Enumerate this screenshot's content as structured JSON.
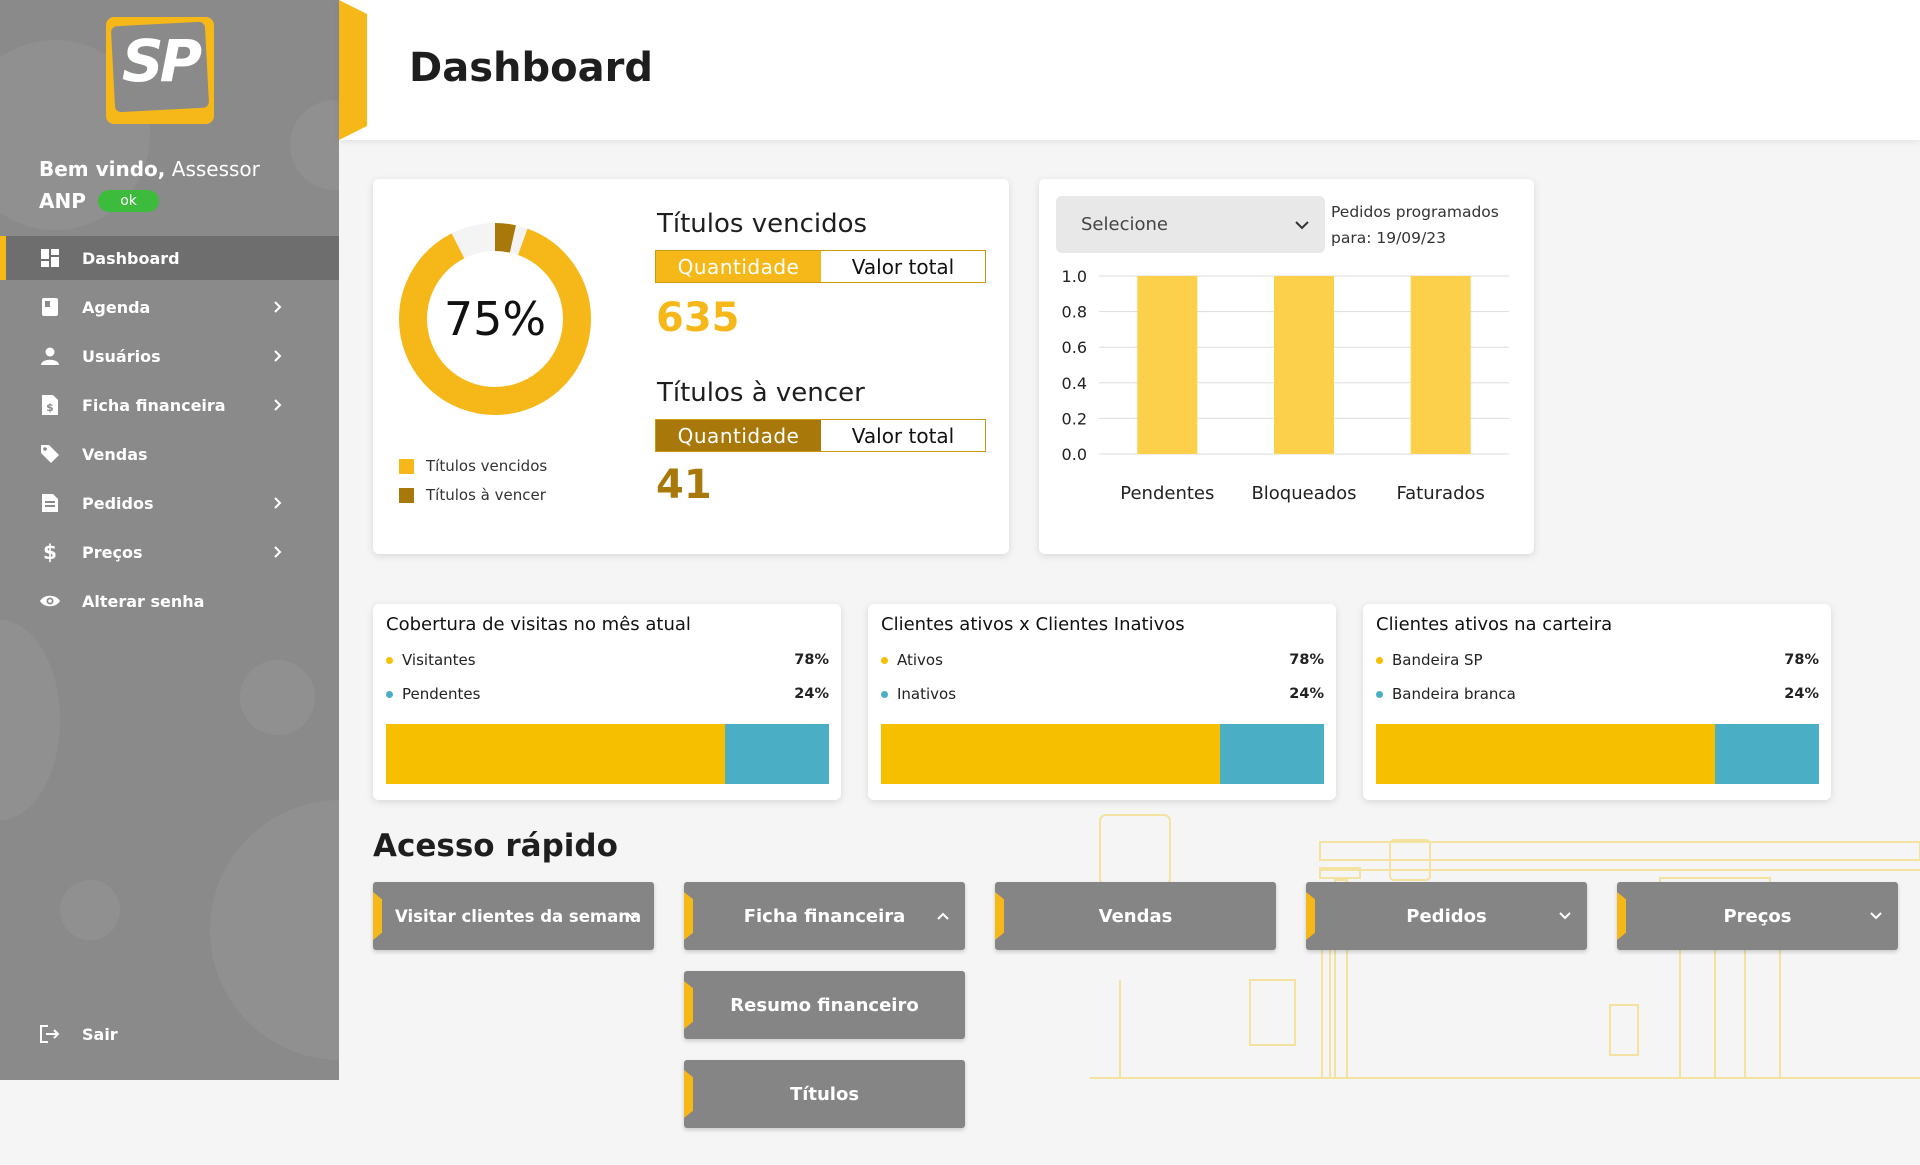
{
  "brand": {
    "logo_text": "SP",
    "accent": "#f6b818",
    "dark_accent": "#a9780a",
    "teal": "#4aafc5"
  },
  "sidebar": {
    "welcome_bold": "Bem vindo,",
    "welcome_role": "Assessor",
    "user_name": "ANP",
    "status_badge": "ok",
    "items": [
      {
        "label": "Dashboard",
        "icon": "dashboard-icon",
        "active": true,
        "has_chevron": false
      },
      {
        "label": "Agenda",
        "icon": "book-icon",
        "active": false,
        "has_chevron": true
      },
      {
        "label": "Usuários",
        "icon": "person-icon",
        "active": false,
        "has_chevron": true
      },
      {
        "label": "Ficha financeira",
        "icon": "document-dollar-icon",
        "active": false,
        "has_chevron": true
      },
      {
        "label": "Vendas",
        "icon": "tag-icon",
        "active": false,
        "has_chevron": false
      },
      {
        "label": "Pedidos",
        "icon": "list-document-icon",
        "active": false,
        "has_chevron": true
      },
      {
        "label": "Preços",
        "icon": "dollar-icon",
        "active": false,
        "has_chevron": true
      },
      {
        "label": "Alterar senha",
        "icon": "eye-icon",
        "active": false,
        "has_chevron": false
      }
    ],
    "logout_label": "Sair"
  },
  "header": {
    "title": "Dashboard"
  },
  "titles_card": {
    "donut_percent": "75%",
    "donut_fraction": 0.75,
    "legend": [
      {
        "label": "Títulos vencidos",
        "color": "#f6b818"
      },
      {
        "label": "Títulos à vencer",
        "color": "#a9780a"
      }
    ],
    "overdue": {
      "title": "Títulos vencidos",
      "toggle_on": "Quantidade",
      "toggle_off": "Valor total",
      "value": "635"
    },
    "upcoming": {
      "title": "Títulos à vencer",
      "toggle_on": "Quantidade",
      "toggle_off": "Valor total",
      "value": "41"
    }
  },
  "orders_card": {
    "select_placeholder": "Selecione",
    "scheduled_label": "Pedidos programados para: 19/09/23"
  },
  "chart_data": {
    "type": "bar",
    "categories": [
      "Pendentes",
      "Bloqueados",
      "Faturados"
    ],
    "values": [
      1.0,
      1.0,
      1.0
    ],
    "ylim": [
      0,
      1.0
    ],
    "yticks": [
      "1.0",
      "0.8",
      "0.6",
      "0.4",
      "0.2",
      "0.0"
    ],
    "color": "#fcd04a",
    "grid": true
  },
  "stat_cards": [
    {
      "title": "Cobertura de visitas no mês atual",
      "rows": [
        {
          "label": "Visitantes",
          "pct": "78%",
          "color": "#f6c000"
        },
        {
          "label": "Pendentes",
          "pct": "24%",
          "color": "#4aafc5"
        }
      ],
      "bar": [
        0.78,
        0.24
      ]
    },
    {
      "title": "Clientes ativos x Clientes Inativos",
      "rows": [
        {
          "label": "Ativos",
          "pct": "78%",
          "color": "#f6c000"
        },
        {
          "label": "Inativos",
          "pct": "24%",
          "color": "#4aafc5"
        }
      ],
      "bar": [
        0.78,
        0.24
      ]
    },
    {
      "title": "Clientes ativos na carteira",
      "rows": [
        {
          "label": "Bandeira SP",
          "pct": "78%",
          "color": "#f6c000"
        },
        {
          "label": "Bandeira branca",
          "pct": "24%",
          "color": "#4aafc5"
        }
      ],
      "bar": [
        0.78,
        0.24
      ]
    }
  ],
  "quick_access": {
    "title": "Acesso rápido",
    "buttons": {
      "visit": "Visitar clientes da semana",
      "finance": "Ficha financeira",
      "finance_summary": "Resumo financeiro",
      "finance_titles": "Títulos",
      "sales": "Vendas",
      "orders": "Pedidos",
      "prices": "Preços"
    }
  }
}
